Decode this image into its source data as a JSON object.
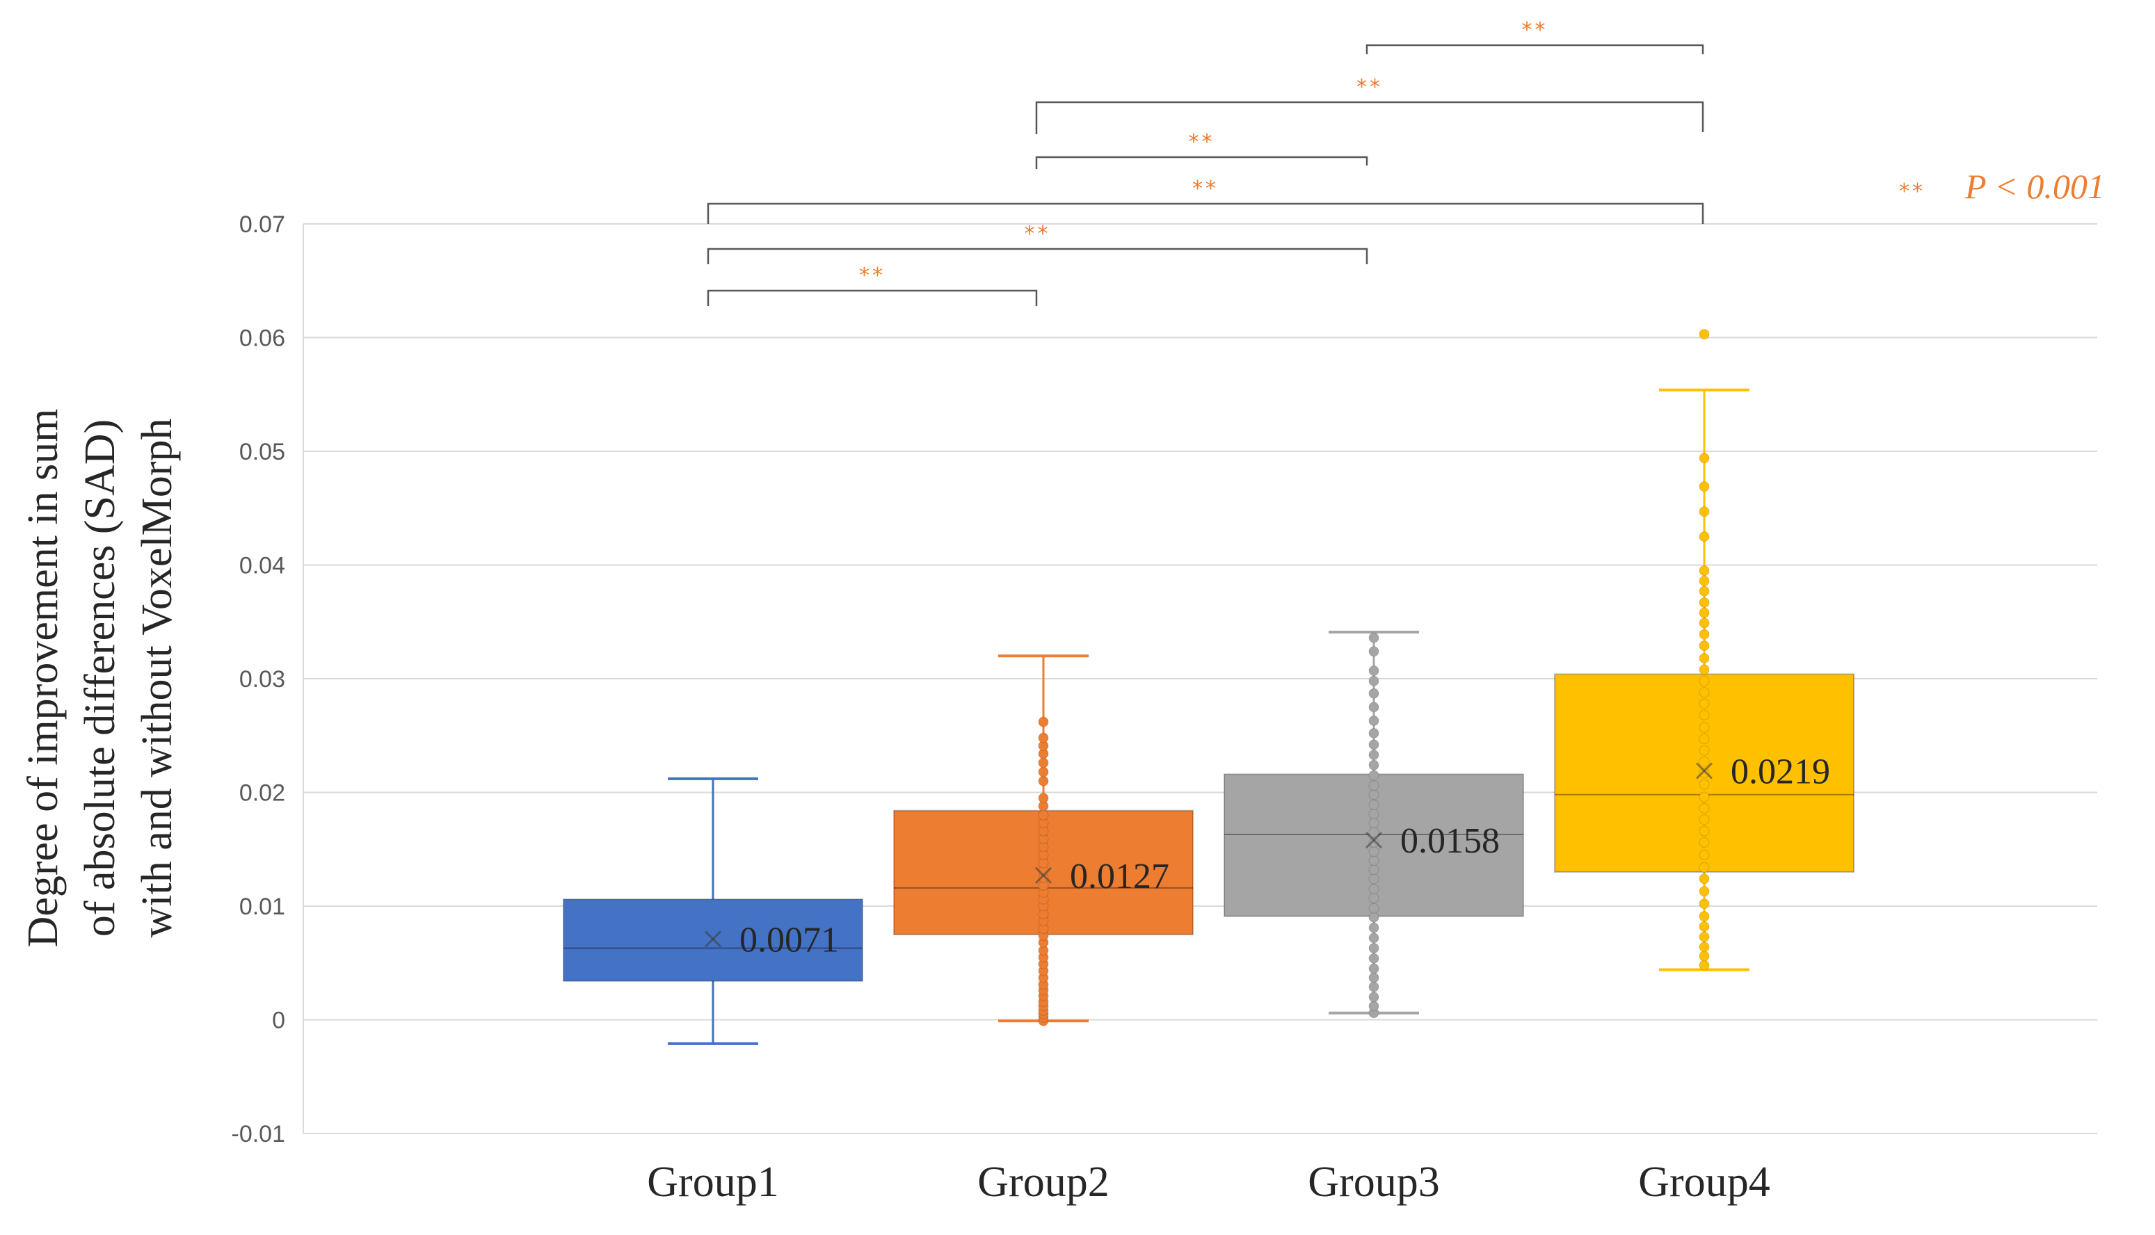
{
  "chart_data": {
    "type": "box",
    "ylabel_lines": [
      "Degree of improvement in  sum",
      "of absolute differences (SAD)",
      "with and without VoxelMorph"
    ],
    "ylim": [
      -0.01,
      0.07
    ],
    "yticks": [
      "0.07",
      "0.06",
      "0.05",
      "0.04",
      "0.03",
      "0.02",
      "0.01",
      "0",
      "-0.01"
    ],
    "ytick_values": [
      0.07,
      0.06,
      0.05,
      0.04,
      0.03,
      0.02,
      0.01,
      0,
      -0.01
    ],
    "grid": true,
    "categories": [
      "Group1",
      "Group2",
      "Group3",
      "Group4"
    ],
    "series": [
      {
        "category": "Group1",
        "color": "#4472C4",
        "whisker_low": -0.0021,
        "q1": 0.0034,
        "median": 0.0063,
        "q3": 0.0106,
        "whisker_high": 0.0212,
        "mean": 0.0071,
        "mean_label": "0.0071",
        "points": []
      },
      {
        "category": "Group2",
        "color": "#ED7D31",
        "whisker_low": -0.0001,
        "q1": 0.0075,
        "median": 0.0116,
        "q3": 0.0184,
        "whisker_high": 0.032,
        "mean": 0.0127,
        "mean_label": "0.0127",
        "points": [
          -0.0001,
          0.0002,
          0.0005,
          0.0008,
          0.0012,
          0.0016,
          0.0021,
          0.0026,
          0.0031,
          0.0037,
          0.0043,
          0.0049,
          0.0055,
          0.0061,
          0.0068,
          0.0074,
          0.008,
          0.0087,
          0.0093,
          0.01,
          0.0106,
          0.0112,
          0.0118,
          0.0125,
          0.0131,
          0.0138,
          0.0145,
          0.0152,
          0.0159,
          0.0166,
          0.0173,
          0.018,
          0.0188,
          0.0195,
          0.021,
          0.0218,
          0.0226,
          0.0234,
          0.0241,
          0.0248,
          0.0262
        ]
      },
      {
        "category": "Group3",
        "color": "#A5A5A5",
        "whisker_low": 0.0006,
        "q1": 0.0091,
        "median": 0.0163,
        "q3": 0.0216,
        "whisker_high": 0.0341,
        "mean": 0.0158,
        "mean_label": "0.0158",
        "points": [
          0.0006,
          0.0012,
          0.002,
          0.0029,
          0.0037,
          0.0045,
          0.0054,
          0.0063,
          0.0072,
          0.0081,
          0.009,
          0.0098,
          0.0107,
          0.0115,
          0.0124,
          0.0132,
          0.014,
          0.0148,
          0.0156,
          0.0165,
          0.0173,
          0.0181,
          0.0189,
          0.0198,
          0.0206,
          0.0215,
          0.0224,
          0.0233,
          0.0242,
          0.0252,
          0.0263,
          0.0275,
          0.0287,
          0.0298,
          0.0307,
          0.0324,
          0.0336
        ]
      },
      {
        "category": "Group4",
        "color": "#FFC000",
        "whisker_low": 0.0044,
        "q1": 0.013,
        "median": 0.0198,
        "q3": 0.0304,
        "whisker_high": 0.0554,
        "mean": 0.0219,
        "mean_label": "0.0219",
        "points": [
          0.0048,
          0.0056,
          0.0064,
          0.0073,
          0.0082,
          0.0091,
          0.0102,
          0.0113,
          0.0124,
          0.0134,
          0.0145,
          0.0156,
          0.0166,
          0.0176,
          0.0186,
          0.0196,
          0.0207,
          0.0217,
          0.0227,
          0.0237,
          0.0247,
          0.0257,
          0.0268,
          0.0278,
          0.0288,
          0.0298,
          0.0308,
          0.0318,
          0.0329,
          0.0339,
          0.0349,
          0.0358,
          0.0367,
          0.0377,
          0.0386,
          0.0395,
          0.0425,
          0.0447,
          0.0469,
          0.0494,
          0.0603
        ]
      }
    ],
    "significance": [
      {
        "from": "Group1",
        "to": "Group2",
        "label": "**"
      },
      {
        "from": "Group1",
        "to": "Group3",
        "label": "**"
      },
      {
        "from": "Group1",
        "to": "Group4",
        "label": "**"
      },
      {
        "from": "Group2",
        "to": "Group3",
        "label": "**"
      },
      {
        "from": "Group2",
        "to": "Group4",
        "label": "**"
      },
      {
        "from": "Group3",
        "to": "Group4",
        "label": "**"
      }
    ],
    "legend_note": {
      "stars": "**",
      "text": "P < 0.001"
    },
    "colors": {
      "sig": "#ED7D31",
      "bracket": "#595959",
      "grid": "#D9D9D9"
    }
  }
}
